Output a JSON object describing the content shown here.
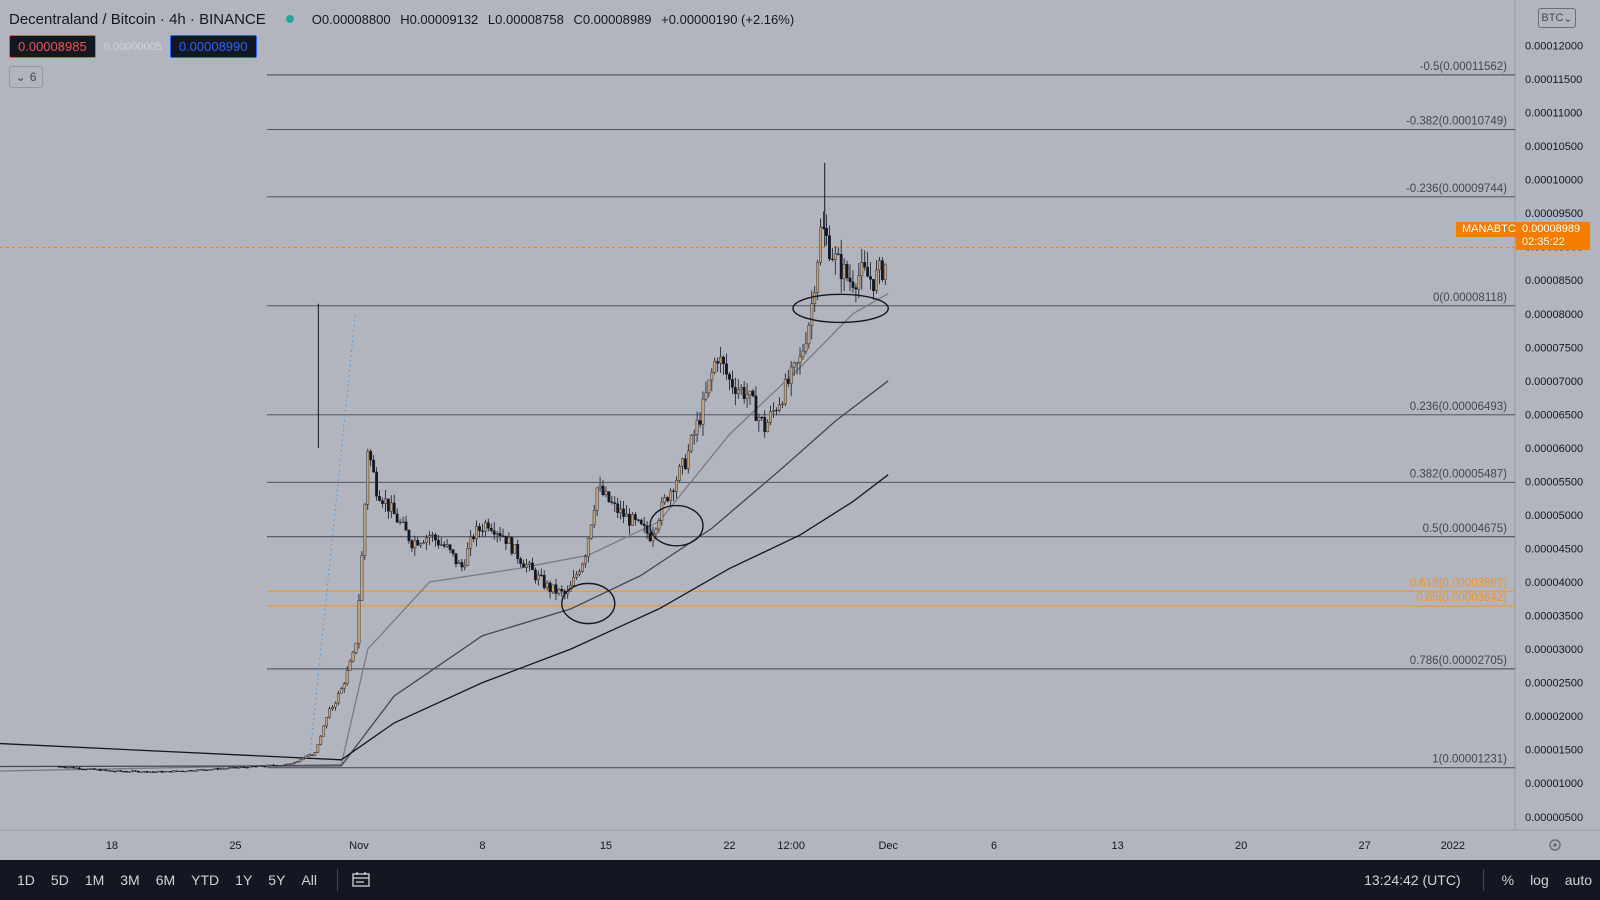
{
  "header": {
    "title": "Decentraland / Bitcoin · 4h · BINANCE",
    "ohlc": {
      "open": "O0.00008800",
      "high": "H0.00009132",
      "low": "L0.00008758",
      "close": "C0.00008989",
      "change": "+0.00000190 (+2.16%)"
    }
  },
  "trade": {
    "sell": "0.00008985",
    "spread": "0.00000005",
    "buy": "0.00008990"
  },
  "indicators_toggle": {
    "count": "6"
  },
  "currency_button": "BTC",
  "last_price": {
    "symbol": "MANABTC",
    "value": "0.00008989",
    "countdown": "02:35:22",
    "color": "#f57c00"
  },
  "toolbar": {
    "timeframes": [
      "1D",
      "5D",
      "1M",
      "3M",
      "6M",
      "YTD",
      "1Y",
      "5Y",
      "All"
    ],
    "clock": "13:24:42 (UTC)",
    "percent": "%",
    "log": "log",
    "auto": "auto"
  },
  "colors": {
    "background": "#b2b5be",
    "up_candle": "#c9a27b",
    "down_candle": "#131722",
    "fib_line": "#434651",
    "fib_highlight": "#f7931a",
    "toolbar_bg": "#131722"
  },
  "chart_data": {
    "type": "candlestick",
    "symbol": "MANABTC",
    "interval": "4h",
    "exchange": "BINANCE",
    "y_axis": {
      "ticks": [
        "0.00012000",
        "0.00011500",
        "0.00011000",
        "0.00010500",
        "0.00010000",
        "0.00009500",
        "0.00009000",
        "0.00008500",
        "0.00008000",
        "0.00007500",
        "0.00007000",
        "0.00006500",
        "0.00006000",
        "0.00005500",
        "0.00005000",
        "0.00004500",
        "0.00004000",
        "0.00003500",
        "0.00003000",
        "0.00002500",
        "0.00002000",
        "0.00001500",
        "0.00001000",
        "0.00000500"
      ],
      "ylim": [
        3e-06,
        0.000122
      ],
      "scale": "linear"
    },
    "x_axis": {
      "ticks": [
        "18",
        "25",
        "Nov",
        "8",
        "15",
        "22",
        "12:00",
        "Dec",
        "6",
        "13",
        "20",
        "27",
        "2022"
      ],
      "tick_days": [
        -13,
        -6,
        1,
        8,
        15,
        22,
        25.5,
        31,
        37,
        44,
        51,
        58,
        63
      ]
    },
    "fibonacci": [
      {
        "level": "-0.5",
        "price": 0.00011562,
        "label": "-0.5(0.00011562)"
      },
      {
        "level": "-0.382",
        "price": 0.00010749,
        "label": "-0.382(0.00010749)"
      },
      {
        "level": "-0.236",
        "price": 9.744e-05,
        "label": "-0.236(0.00009744)"
      },
      {
        "level": "0",
        "price": 8.118e-05,
        "label": "0(0.00008118)"
      },
      {
        "level": "0.236",
        "price": 6.493e-05,
        "label": "0.236(0.00006493)"
      },
      {
        "level": "0.382",
        "price": 5.487e-05,
        "label": "0.382(0.00005487)"
      },
      {
        "level": "0.5",
        "price": 4.675e-05,
        "label": "0.5(0.00004675)"
      },
      {
        "level": "0.618",
        "price": 3.862e-05,
        "label": "0.618(0.00003862)",
        "highlight": true
      },
      {
        "level": "0.65",
        "price": 3.642e-05,
        "label": "0.65(0.00003642)",
        "highlight": true
      },
      {
        "level": "0.786",
        "price": 2.705e-05,
        "label": "0.786(0.00002705)"
      },
      {
        "level": "1",
        "price": 1.231e-05,
        "label": "1(0.00001231)"
      }
    ],
    "price_path": [
      [
        -16,
        1.25e-05
      ],
      [
        -13,
        1.18e-05
      ],
      [
        -10,
        1.17e-05
      ],
      [
        -6,
        1.23e-05
      ],
      [
        -3,
        1.28e-05
      ],
      [
        -1.5,
        1.45e-05
      ],
      [
        -0.8,
        2e-05
      ],
      [
        0,
        2.4e-05
      ],
      [
        0.8,
        3e-05
      ],
      [
        1.2,
        4.5e-05
      ],
      [
        1.5,
        6e-05
      ],
      [
        2,
        5.4e-05
      ],
      [
        3,
        5e-05
      ],
      [
        4,
        4.6e-05
      ],
      [
        5,
        4.7e-05
      ],
      [
        6,
        4.5e-05
      ],
      [
        6.8,
        4.2e-05
      ],
      [
        7.5,
        4.7e-05
      ],
      [
        8.3,
        4.9e-05
      ],
      [
        9.2,
        4.7e-05
      ],
      [
        10,
        4.4e-05
      ],
      [
        11,
        4.1e-05
      ],
      [
        11.8,
        3.9e-05
      ],
      [
        12.8,
        3.8e-05
      ],
      [
        13.8,
        4.4e-05
      ],
      [
        14.5,
        5.4e-05
      ],
      [
        15.5,
        5.1e-05
      ],
      [
        16.5,
        4.9e-05
      ],
      [
        17.5,
        4.7e-05
      ],
      [
        18.5,
        5.3e-05
      ],
      [
        19.5,
        5.8e-05
      ],
      [
        20.5,
        6.6e-05
      ],
      [
        21.3,
        7.4e-05
      ],
      [
        22,
        7e-05
      ],
      [
        23,
        6.8e-05
      ],
      [
        24,
        6.3e-05
      ],
      [
        25,
        6.8e-05
      ],
      [
        26,
        7.3e-05
      ],
      [
        26.6,
        8e-05
      ],
      [
        27.2,
        9.3e-05
      ],
      [
        28,
        8.8e-05
      ],
      [
        28.8,
        8.5e-05
      ],
      [
        29.5,
        8.6e-05
      ],
      [
        30.2,
        8.5e-05
      ],
      [
        31,
        8.8e-05
      ]
    ],
    "moving_averages": [
      {
        "name": "MA1",
        "color": "#787b86",
        "points": [
          [
            -20,
            1.18e-05
          ],
          [
            0,
            1.28e-05
          ],
          [
            1.5,
            3e-05
          ],
          [
            5,
            4e-05
          ],
          [
            10,
            4.2e-05
          ],
          [
            14,
            4.4e-05
          ],
          [
            18,
            4.9e-05
          ],
          [
            22,
            6.2e-05
          ],
          [
            26,
            7.2e-05
          ],
          [
            29,
            8e-05
          ],
          [
            31,
            8.3e-05
          ]
        ]
      },
      {
        "name": "MA2",
        "color": "#434651",
        "points": [
          [
            -20,
            1.25e-05
          ],
          [
            0,
            1.26e-05
          ],
          [
            3,
            2.3e-05
          ],
          [
            8,
            3.2e-05
          ],
          [
            13,
            3.6e-05
          ],
          [
            17,
            4.1e-05
          ],
          [
            21,
            4.8e-05
          ],
          [
            25,
            5.7e-05
          ],
          [
            28,
            6.4e-05
          ],
          [
            31,
            7e-05
          ]
        ]
      },
      {
        "name": "MA3",
        "color": "#131722",
        "points": [
          [
            -20,
            1.6e-05
          ],
          [
            0,
            1.35e-05
          ],
          [
            3,
            1.9e-05
          ],
          [
            8,
            2.5e-05
          ],
          [
            13,
            3e-05
          ],
          [
            18,
            3.6e-05
          ],
          [
            22,
            4.2e-05
          ],
          [
            26,
            4.7e-05
          ],
          [
            29,
            5.2e-05
          ],
          [
            31,
            5.6e-05
          ]
        ]
      }
    ],
    "circles": [
      {
        "x": 14.0,
        "y": 3.68e-05,
        "rx_days": 1.5,
        "ry_price": 3e-06
      },
      {
        "x": 19.0,
        "y": 4.84e-05,
        "rx_days": 1.5,
        "ry_price": 3e-06
      },
      {
        "x": 28.3,
        "y": 8.08e-05,
        "rx_days": 2.7,
        "ry_price": 2.1e-06
      }
    ],
    "pump_projection": {
      "start": [
        -1.8,
        1.35e-05
      ],
      "end": [
        0.8,
        8e-05
      ]
    }
  }
}
